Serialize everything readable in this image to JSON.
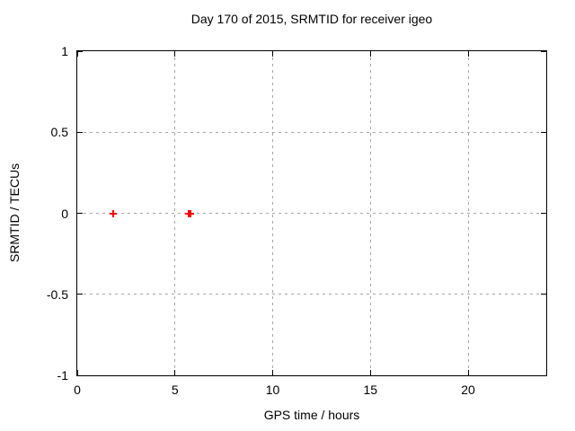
{
  "chart_data": {
    "type": "scatter",
    "title": "Day 170 of 2015, SRMTID for receiver igeo",
    "xlabel": "GPS time / hours",
    "ylabel": "SRMTID / TECUs",
    "xlim": [
      0,
      24
    ],
    "ylim": [
      -1,
      1
    ],
    "xticks": [
      0,
      5,
      10,
      15,
      20
    ],
    "yticks": [
      -1,
      -0.5,
      0,
      0.5,
      1
    ],
    "grid_x": [
      5,
      10,
      15,
      20
    ],
    "grid_y": [
      -0.5,
      0,
      0.5
    ],
    "grid": true,
    "legend_position": "none",
    "tick_style": "inward-mirrored",
    "colors": {
      "marker": "#ff0000",
      "grid": "#a6a6a6",
      "border": "#000000",
      "text": "#000000",
      "background": "#ffffff"
    },
    "series": [
      {
        "name": "SRMTID",
        "marker": "plus",
        "color": "#ff0000",
        "points": [
          {
            "x": 1.85,
            "y": 0
          },
          {
            "x": 5.7,
            "y": 0
          },
          {
            "x": 5.8,
            "y": 0
          }
        ]
      }
    ]
  }
}
